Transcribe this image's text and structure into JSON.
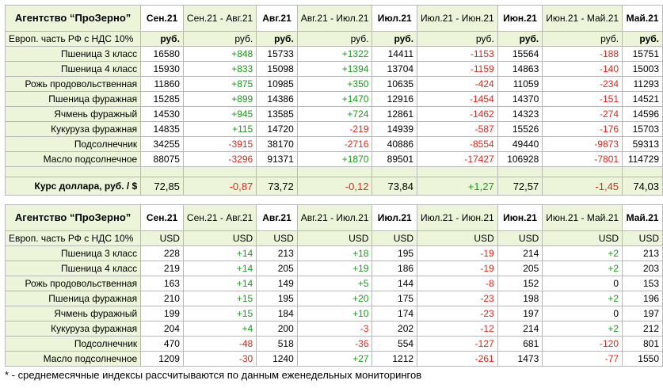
{
  "rub_table": {
    "header": [
      "Агентство “ПроЗерно”",
      "Сен.21",
      "Сен.21 - Авг.21",
      "Авг.21",
      "Авг.21 - Июл.21",
      "Июл.21",
      "Июл.21 - Июн.21",
      "Июн.21",
      "Июн.21 - Май.21",
      "Май.21"
    ],
    "units": [
      "Европ. часть РФ с НДС 10%",
      "руб.",
      "руб.",
      "руб.",
      "руб.",
      "руб.",
      "руб.",
      "руб.",
      "руб.",
      "руб."
    ],
    "rows": [
      [
        "Пшеница 3 класс",
        "16580",
        "+848",
        "15733",
        "+1322",
        "14411",
        "-1153",
        "15564",
        "-188",
        "15751"
      ],
      [
        "Пшеница 4 класс",
        "15930",
        "+833",
        "15098",
        "+1394",
        "13704",
        "-1159",
        "14863",
        "-140",
        "15003"
      ],
      [
        "Рожь продовольственная",
        "11860",
        "+875",
        "10985",
        "+350",
        "10635",
        "-424",
        "11059",
        "-234",
        "11293"
      ],
      [
        "Пшеница фуражная",
        "15285",
        "+899",
        "14386",
        "+1470",
        "12916",
        "-1454",
        "14370",
        "-151",
        "14521"
      ],
      [
        "Ячмень фуражный",
        "14530",
        "+945",
        "13585",
        "+724",
        "12861",
        "-1462",
        "14323",
        "-274",
        "14596"
      ],
      [
        "Кукуруза фуражная",
        "14835",
        "+115",
        "14720",
        "-219",
        "14939",
        "-587",
        "15526",
        "-176",
        "15703"
      ],
      [
        "Подсолнечник",
        "34255",
        "-3915",
        "38170",
        "-2716",
        "40886",
        "-8554",
        "49440",
        "-9873",
        "59313"
      ],
      [
        "Масло подсолнечное",
        "88075",
        "-3296",
        "91371",
        "+1870",
        "89501",
        "-17427",
        "106928",
        "-7801",
        "114729"
      ]
    ],
    "rate": [
      "Курс доллара, руб. / $",
      "72,85",
      "-0,87",
      "73,72",
      "-0,12",
      "73,84",
      "+1,27",
      "72,57",
      "-1,45",
      "74,03"
    ]
  },
  "usd_table": {
    "header": [
      "Агентство “ПроЗерно”",
      "Сен.21",
      "Сен.21 - Авг.21",
      "Авг.21",
      "Авг.21 - Июл.21",
      "Июл.21",
      "Июл.21 - Июн.21",
      "Июн.21",
      "Июн.21 - Май.21",
      "Май.21"
    ],
    "units": [
      "Европ. часть РФ с НДС 10%",
      "USD",
      "USD",
      "USD",
      "USD",
      "USD",
      "USD",
      "USD",
      "USD",
      "USD"
    ],
    "rows": [
      [
        "Пшеница 3 класс",
        "228",
        "+14",
        "213",
        "+18",
        "195",
        "-19",
        "214",
        "+2",
        "213"
      ],
      [
        "Пшеница 4 класс",
        "219",
        "+14",
        "205",
        "+19",
        "186",
        "-19",
        "205",
        "+2",
        "203"
      ],
      [
        "Рожь продовольственная",
        "163",
        "+14",
        "149",
        "+5",
        "144",
        "-8",
        "152",
        "0",
        "153"
      ],
      [
        "Пшеница фуражная",
        "210",
        "+15",
        "195",
        "+20",
        "175",
        "-23",
        "198",
        "+2",
        "196"
      ],
      [
        "Ячмень фуражный",
        "199",
        "+15",
        "184",
        "+10",
        "174",
        "-23",
        "197",
        "0",
        "197"
      ],
      [
        "Кукуруза фуражная",
        "204",
        "+4",
        "200",
        "-3",
        "202",
        "-12",
        "214",
        "+2",
        "212"
      ],
      [
        "Подсолнечник",
        "470",
        "-48",
        "518",
        "-36",
        "554",
        "-127",
        "681",
        "-120",
        "801"
      ],
      [
        "Масло подсолнечное",
        "1209",
        "-30",
        "1240",
        "+27",
        "1212",
        "-261",
        "1473",
        "-77",
        "1550"
      ]
    ]
  },
  "footnote": "* - среднемесячные индексы рассчитываются по данным еженедельных мониторингов"
}
